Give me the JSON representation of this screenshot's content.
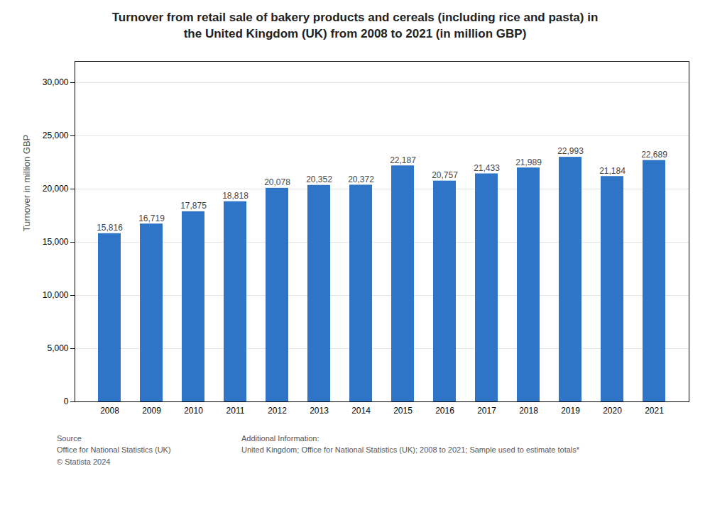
{
  "chart_data": {
    "type": "bar",
    "title": "Turnover from retail sale of bakery products and cereals (including rice and pasta) in\nthe United Kingdom (UK) from 2008 to 2021 (in million GBP)",
    "categories": [
      "2008",
      "2009",
      "2010",
      "2011",
      "2012",
      "2013",
      "2014",
      "2015",
      "2016",
      "2017",
      "2018",
      "2019",
      "2020",
      "2021"
    ],
    "values": [
      15816,
      16719,
      17875,
      18818,
      20078,
      20352,
      20372,
      22187,
      20757,
      21433,
      21989,
      22993,
      21184,
      22689
    ],
    "value_labels": [
      "15,816",
      "16,719",
      "17,875",
      "18,818",
      "20,078",
      "20,352",
      "20,372",
      "22,187",
      "20,757",
      "21,433",
      "21,989",
      "22,993",
      "21,184",
      "22,689"
    ],
    "color": "#2E75C8",
    "ylabel": "Turnover in million GBP",
    "ylim": [
      0,
      32000
    ],
    "yticks": [
      0,
      {
        "value": 5000,
        "label": "5,000"
      },
      {
        "value": 10000,
        "label": "10,000"
      },
      {
        "value": 15000,
        "label": "15,000"
      },
      {
        "value": 20000,
        "label": "20,000"
      },
      {
        "value": 25000,
        "label": "25,000"
      },
      {
        "value": 30000,
        "label": "30,000"
      }
    ],
    "grid": true,
    "data_labels": true,
    "annotations": [
      "Source\nOffice for National Statistics (UK)\n© Statista 2024",
      "Additional Information:\nUnited Kingdom; Office for National Statistics (UK); 2008 to 2021; Sample used to estimate totals*"
    ]
  }
}
